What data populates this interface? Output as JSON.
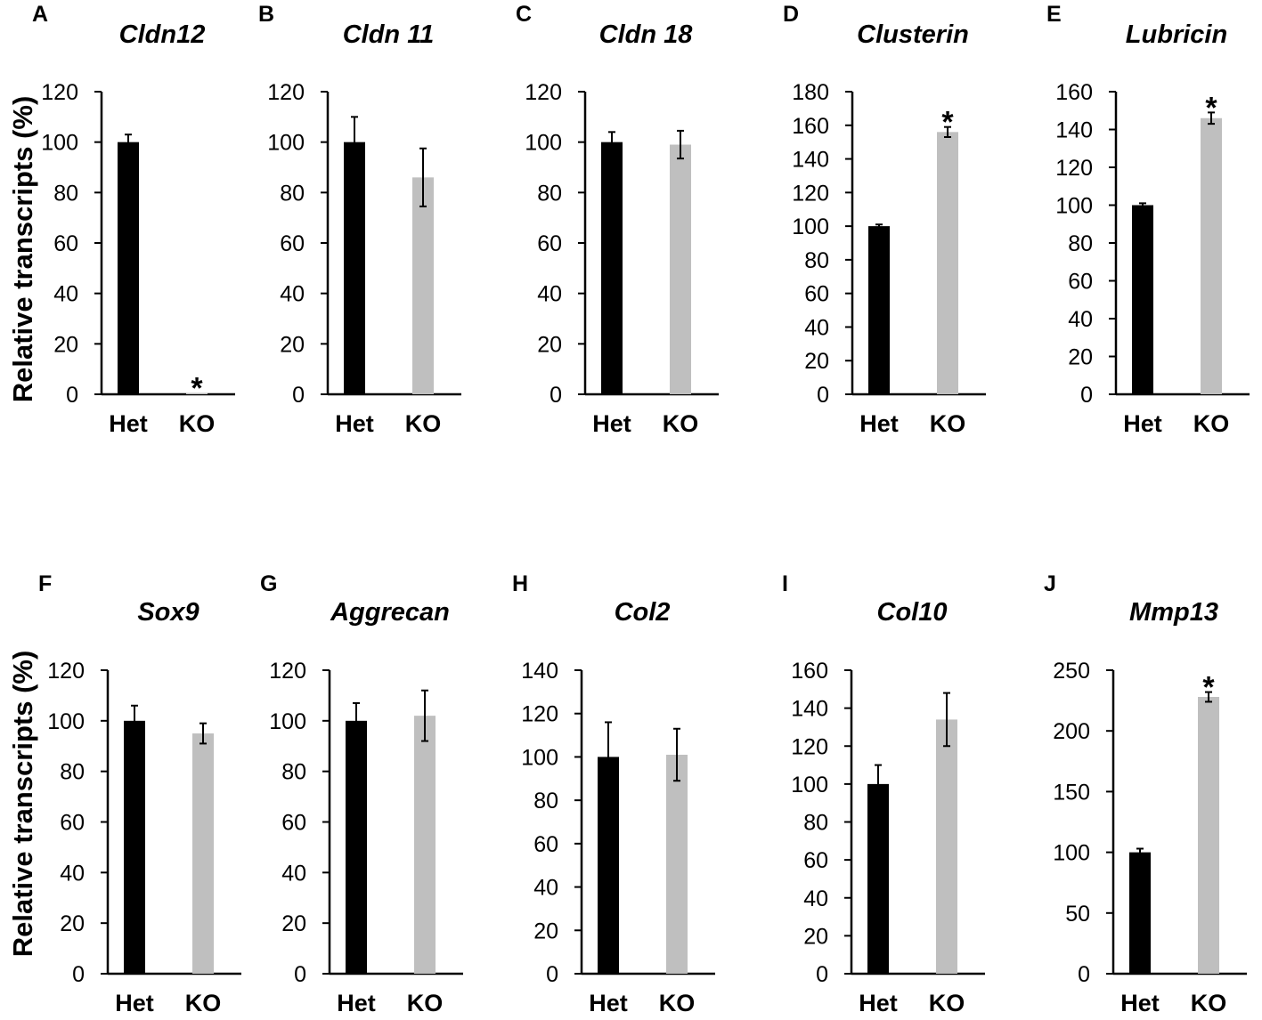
{
  "figure": {
    "y_axis_label_top": "Relative transcripts (%)",
    "y_axis_label_bottom": "Relative transcripts (%)"
  },
  "colors": {
    "het": "#000000",
    "ko": "#bfbfbf",
    "axis": "#000000"
  },
  "chart_data": [
    {
      "type": "bar",
      "panel": "A",
      "title": "Cldn12",
      "categories": [
        "Het",
        "KO"
      ],
      "values": [
        100,
        0.5
      ],
      "errors": [
        3,
        0
      ],
      "significant": [
        false,
        true
      ],
      "ylim": [
        0,
        120
      ],
      "yticks": [
        0,
        20,
        40,
        60,
        80,
        100,
        120
      ]
    },
    {
      "type": "bar",
      "panel": "B",
      "title": "Cldn 11",
      "categories": [
        "Het",
        "KO"
      ],
      "values": [
        100,
        86
      ],
      "errors": [
        10,
        11.5
      ],
      "significant": [
        false,
        false
      ],
      "ylim": [
        0,
        120
      ],
      "yticks": [
        0,
        20,
        40,
        60,
        80,
        100,
        120
      ]
    },
    {
      "type": "bar",
      "panel": "C",
      "title": "Cldn 18",
      "categories": [
        "Het",
        "KO"
      ],
      "values": [
        100,
        99
      ],
      "errors": [
        4,
        5.5
      ],
      "significant": [
        false,
        false
      ],
      "ylim": [
        0,
        120
      ],
      "yticks": [
        0,
        20,
        40,
        60,
        80,
        100,
        120
      ]
    },
    {
      "type": "bar",
      "panel": "D",
      "title": "Clusterin",
      "categories": [
        "Het",
        "KO"
      ],
      "values": [
        100,
        156
      ],
      "errors": [
        1,
        3
      ],
      "significant": [
        false,
        true
      ],
      "ylim": [
        0,
        180
      ],
      "yticks": [
        0,
        20,
        40,
        60,
        80,
        100,
        120,
        140,
        160,
        180
      ]
    },
    {
      "type": "bar",
      "panel": "E",
      "title": "Lubricin",
      "categories": [
        "Het",
        "KO"
      ],
      "values": [
        100,
        146
      ],
      "errors": [
        1,
        3
      ],
      "significant": [
        false,
        true
      ],
      "ylim": [
        0,
        160
      ],
      "yticks": [
        0,
        20,
        40,
        60,
        80,
        100,
        120,
        140,
        160
      ]
    },
    {
      "type": "bar",
      "panel": "F",
      "title": "Sox9",
      "categories": [
        "Het",
        "KO"
      ],
      "values": [
        100,
        95
      ],
      "errors": [
        6,
        4
      ],
      "significant": [
        false,
        false
      ],
      "ylim": [
        0,
        120
      ],
      "yticks": [
        0,
        20,
        40,
        60,
        80,
        100,
        120
      ]
    },
    {
      "type": "bar",
      "panel": "G",
      "title": "Aggrecan",
      "categories": [
        "Het",
        "KO"
      ],
      "values": [
        100,
        102
      ],
      "errors": [
        7,
        10
      ],
      "significant": [
        false,
        false
      ],
      "ylim": [
        0,
        120
      ],
      "yticks": [
        0,
        20,
        40,
        60,
        80,
        100,
        120
      ]
    },
    {
      "type": "bar",
      "panel": "H",
      "title": "Col2",
      "categories": [
        "Het",
        "KO"
      ],
      "values": [
        100,
        101
      ],
      "errors": [
        16,
        12
      ],
      "significant": [
        false,
        false
      ],
      "ylim": [
        0,
        140
      ],
      "yticks": [
        0,
        20,
        40,
        60,
        80,
        100,
        120,
        140
      ]
    },
    {
      "type": "bar",
      "panel": "I",
      "title": "Col10",
      "categories": [
        "Het",
        "KO"
      ],
      "values": [
        100,
        134
      ],
      "errors": [
        10,
        14
      ],
      "significant": [
        false,
        false
      ],
      "ylim": [
        0,
        160
      ],
      "yticks": [
        0,
        20,
        40,
        60,
        80,
        100,
        120,
        140,
        160
      ]
    },
    {
      "type": "bar",
      "panel": "J",
      "title": "Mmp13",
      "categories": [
        "Het",
        "KO"
      ],
      "values": [
        100,
        228
      ],
      "errors": [
        3,
        4
      ],
      "significant": [
        false,
        true
      ],
      "ylim": [
        0,
        250
      ],
      "yticks": [
        0,
        50,
        100,
        150,
        200,
        250
      ]
    }
  ]
}
